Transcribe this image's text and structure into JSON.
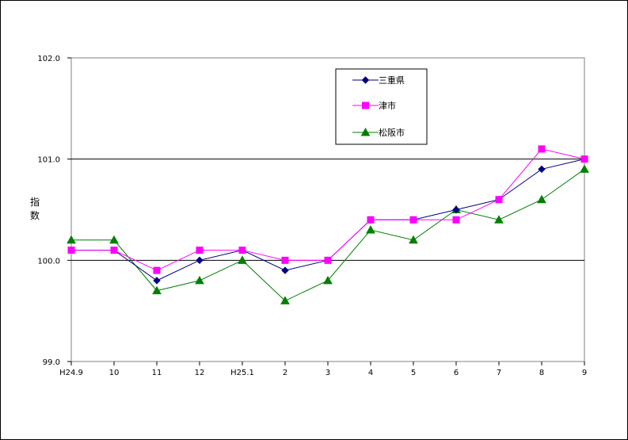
{
  "chart_data": {
    "type": "line",
    "title": "",
    "xlabel": "",
    "ylabel": "指数",
    "categories": [
      "H24.9",
      "10",
      "11",
      "12",
      "H25.1",
      "2",
      "3",
      "4",
      "5",
      "6",
      "7",
      "8",
      "9"
    ],
    "ylim": [
      99.0,
      102.0
    ],
    "yticks": [
      "99.0",
      "100.0",
      "101.0",
      "102.0"
    ],
    "gridlines_at": [
      100.0,
      101.0
    ],
    "legend_position": "top-center",
    "series": [
      {
        "name": "三重県",
        "color": "#000080",
        "marker": "diamond",
        "values": [
          100.1,
          100.1,
          99.8,
          100.0,
          100.1,
          99.9,
          100.0,
          100.4,
          100.4,
          100.5,
          100.6,
          100.9,
          101.0
        ]
      },
      {
        "name": "津市",
        "color": "#ff00ff",
        "marker": "square",
        "values": [
          100.1,
          100.1,
          99.9,
          100.1,
          100.1,
          100.0,
          100.0,
          100.4,
          100.4,
          100.4,
          100.6,
          101.1,
          101.0
        ]
      },
      {
        "name": "松阪市",
        "color": "#008000",
        "marker": "triangle",
        "values": [
          100.2,
          100.2,
          99.7,
          99.8,
          100.0,
          99.6,
          99.8,
          100.3,
          100.2,
          100.5,
          100.4,
          100.6,
          100.9
        ]
      }
    ]
  }
}
